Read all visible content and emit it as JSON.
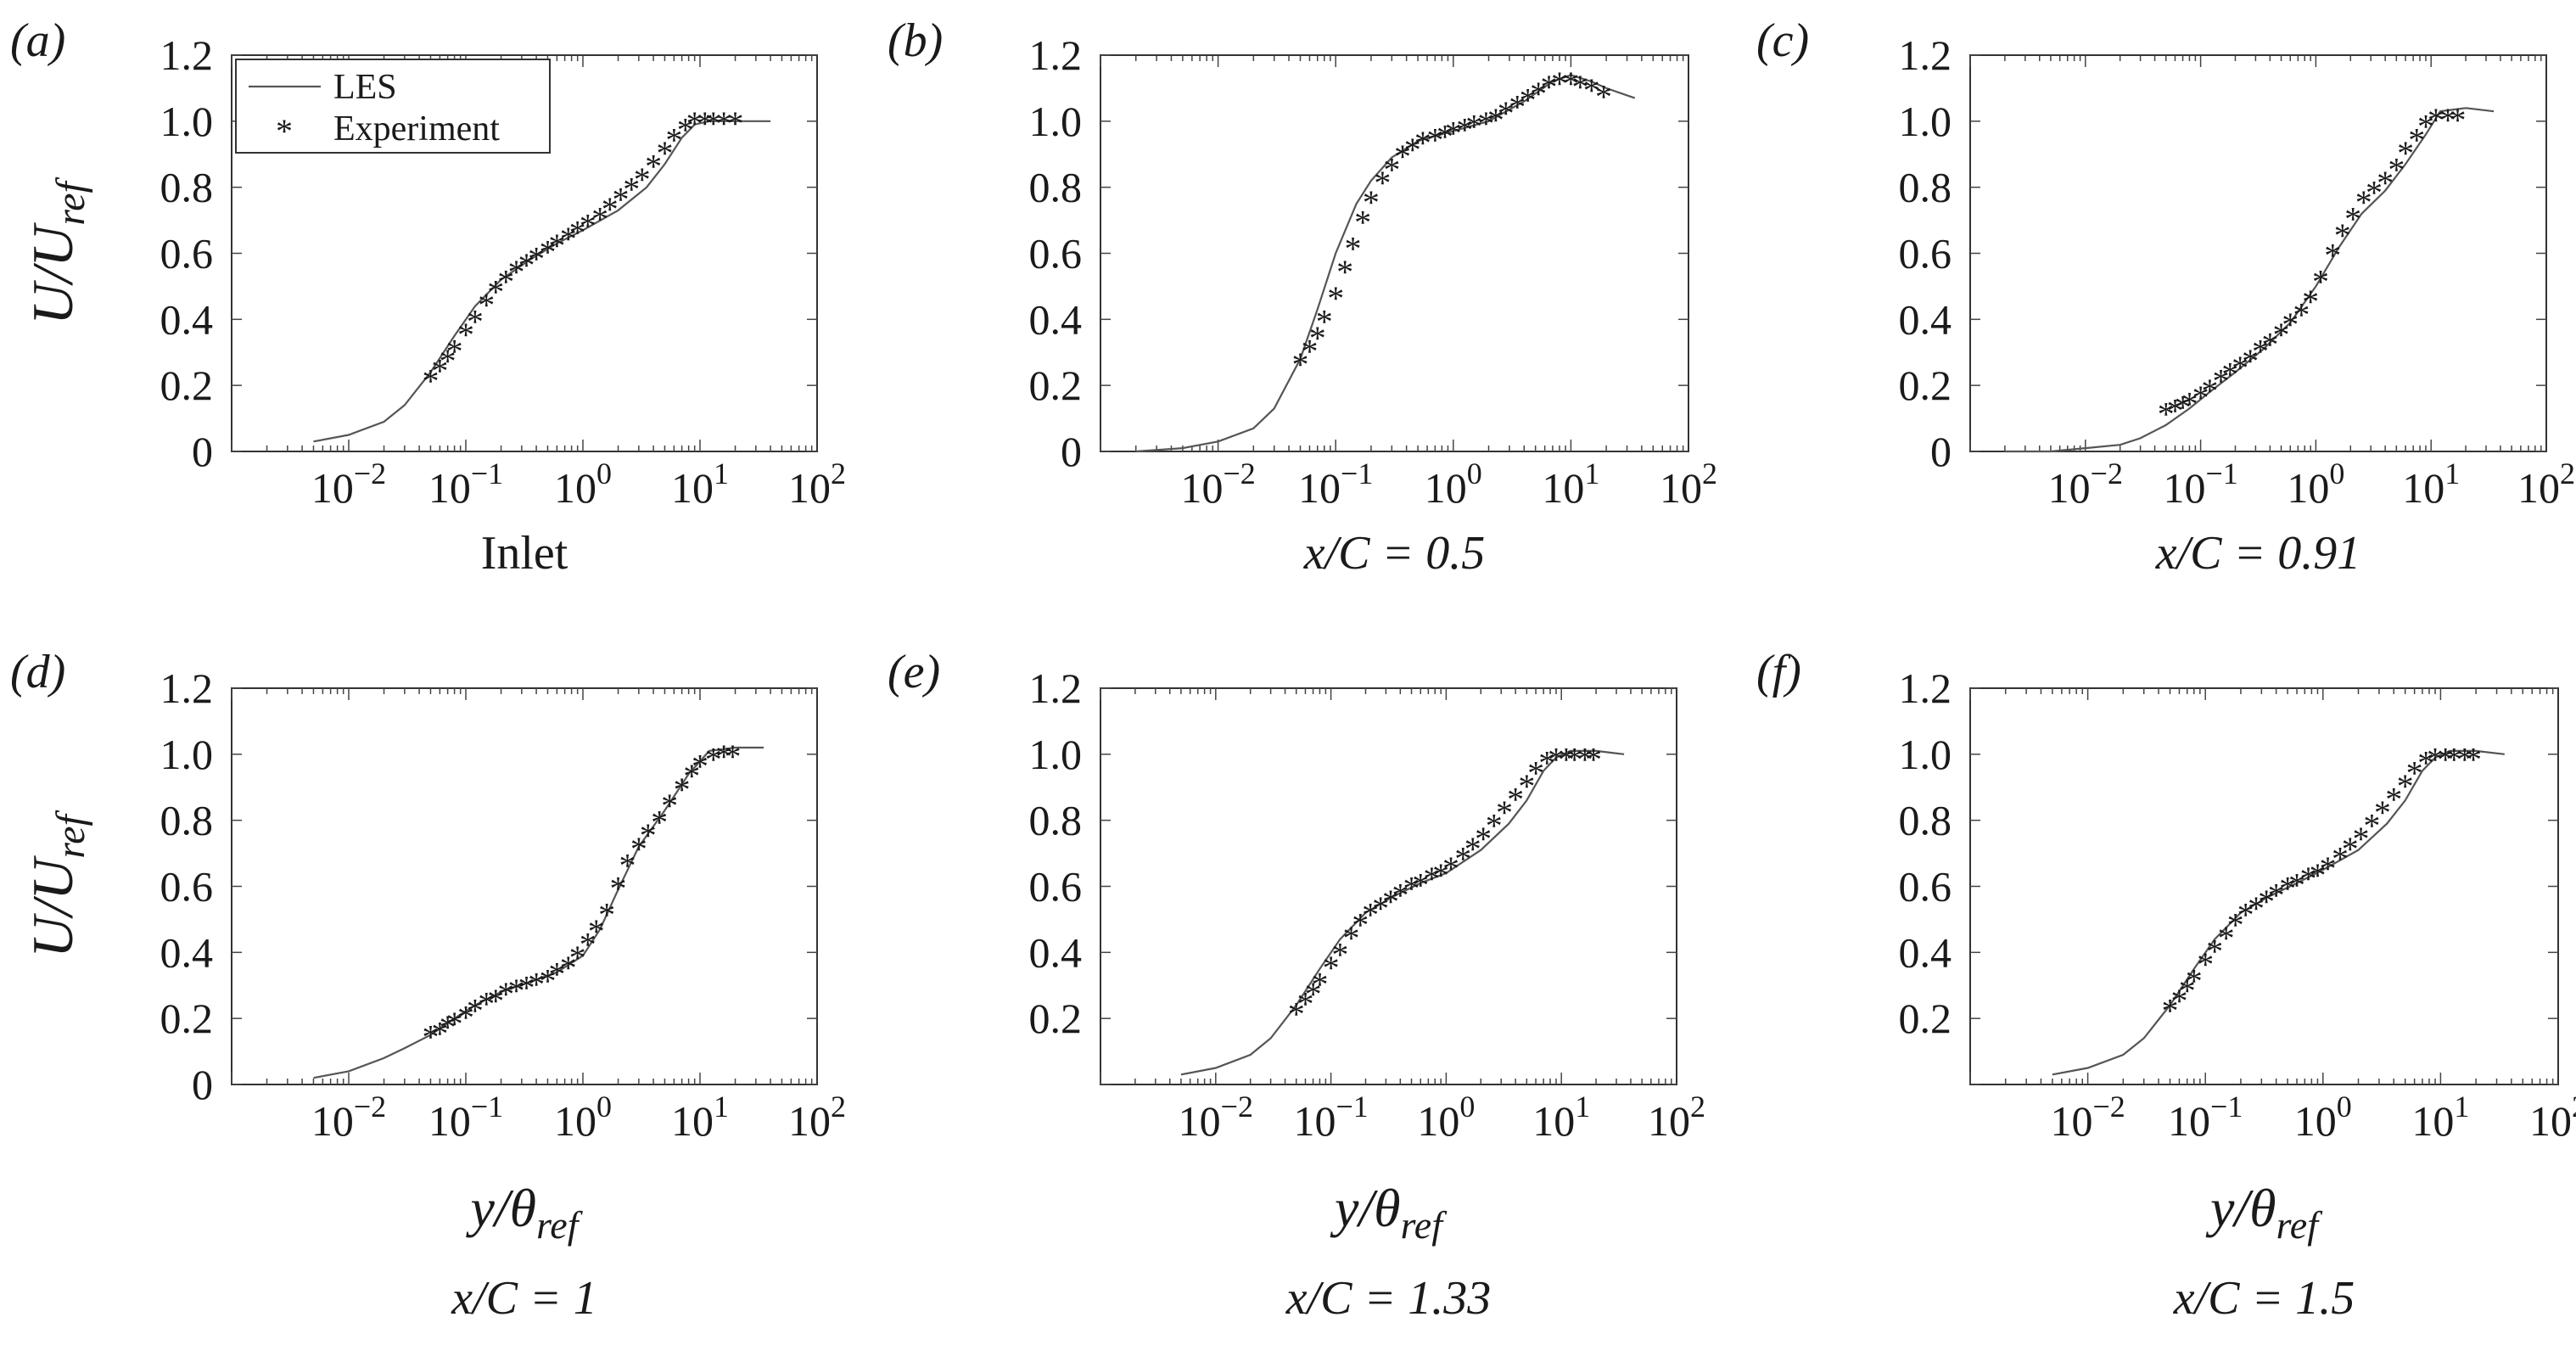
{
  "legend": {
    "les": "LES",
    "experiment": "Experiment",
    "marker": "*"
  },
  "axes_common": {
    "xscale": "log",
    "xlim": [
      0.001,
      100
    ],
    "ylim": [
      0,
      1.2
    ],
    "xticks": [
      {
        "base": "10",
        "exp": "−2"
      },
      {
        "base": "10",
        "exp": "−1"
      },
      {
        "base": "10",
        "exp": "0"
      },
      {
        "base": "10",
        "exp": "1"
      },
      {
        "base": "10",
        "exp": "2"
      }
    ],
    "ylabel": "U/U_ref",
    "xlabel": "y/θ_ref"
  },
  "chart_data": [
    {
      "type": "line+scatter",
      "panel": "(a)",
      "caption": "Inlet",
      "yticks": [
        "0",
        "0.2",
        "0.4",
        "0.6",
        "0.8",
        "1.0",
        "1.2"
      ],
      "show_ylabel": true,
      "show_xlabel": false,
      "show_legend": true,
      "series": [
        {
          "name": "LES",
          "style": "line",
          "x": [
            0.005,
            0.01,
            0.02,
            0.03,
            0.05,
            0.08,
            0.12,
            0.2,
            0.35,
            0.6,
            1,
            2,
            3.5,
            5,
            7,
            9,
            12,
            20,
            40
          ],
          "y": [
            0.03,
            0.05,
            0.09,
            0.14,
            0.24,
            0.35,
            0.44,
            0.52,
            0.58,
            0.63,
            0.67,
            0.73,
            0.8,
            0.87,
            0.95,
            0.99,
            1.0,
            1.0,
            1.0
          ]
        },
        {
          "name": "Experiment",
          "style": "markers",
          "x": [
            0.05,
            0.06,
            0.07,
            0.08,
            0.1,
            0.12,
            0.15,
            0.18,
            0.22,
            0.27,
            0.33,
            0.4,
            0.5,
            0.6,
            0.75,
            0.9,
            1.1,
            1.4,
            1.7,
            2.1,
            2.6,
            3.2,
            4,
            5,
            6,
            7.5,
            9,
            11,
            13,
            16,
            20
          ],
          "y": [
            0.22,
            0.25,
            0.28,
            0.31,
            0.36,
            0.4,
            0.45,
            0.49,
            0.52,
            0.55,
            0.57,
            0.59,
            0.61,
            0.63,
            0.65,
            0.67,
            0.69,
            0.71,
            0.74,
            0.77,
            0.8,
            0.83,
            0.87,
            0.91,
            0.95,
            0.98,
            1.0,
            1.0,
            1.0,
            1.0,
            1.0
          ]
        }
      ]
    },
    {
      "type": "line+scatter",
      "panel": "(b)",
      "caption": "x/C = 0.5",
      "yticks": [
        "0",
        "0.2",
        "0.4",
        "0.6",
        "0.8",
        "1.0",
        "1.2"
      ],
      "show_ylabel": false,
      "show_xlabel": false,
      "show_legend": false,
      "series": [
        {
          "name": "LES",
          "style": "line",
          "x": [
            0.002,
            0.005,
            0.01,
            0.02,
            0.03,
            0.05,
            0.07,
            0.1,
            0.15,
            0.2,
            0.3,
            0.5,
            1,
            2,
            4,
            7,
            10,
            15,
            20,
            35
          ],
          "y": [
            0.0,
            0.01,
            0.03,
            0.07,
            0.13,
            0.28,
            0.43,
            0.6,
            0.75,
            0.82,
            0.89,
            0.94,
            0.97,
            1.0,
            1.06,
            1.12,
            1.14,
            1.12,
            1.1,
            1.07
          ]
        },
        {
          "name": "Experiment",
          "style": "markers",
          "x": [
            0.05,
            0.06,
            0.07,
            0.08,
            0.1,
            0.12,
            0.14,
            0.17,
            0.2,
            0.25,
            0.3,
            0.37,
            0.45,
            0.55,
            0.7,
            0.85,
            1,
            1.25,
            1.5,
            1.9,
            2.3,
            2.8,
            3.5,
            4.3,
            5.3,
            6.5,
            8,
            10,
            12,
            15,
            19
          ],
          "y": [
            0.27,
            0.31,
            0.35,
            0.4,
            0.47,
            0.55,
            0.62,
            0.7,
            0.76,
            0.82,
            0.86,
            0.9,
            0.92,
            0.94,
            0.95,
            0.96,
            0.97,
            0.98,
            0.99,
            1.0,
            1.01,
            1.03,
            1.05,
            1.07,
            1.09,
            1.11,
            1.12,
            1.12,
            1.11,
            1.1,
            1.08
          ]
        }
      ]
    },
    {
      "type": "line+scatter",
      "panel": "(c)",
      "caption": "x/C = 0.91",
      "yticks": [
        "0",
        "0.2",
        "0.4",
        "0.6",
        "0.8",
        "1.0",
        "1.2"
      ],
      "show_ylabel": false,
      "show_xlabel": false,
      "show_legend": false,
      "series": [
        {
          "name": "LES",
          "style": "line",
          "x": [
            0.002,
            0.005,
            0.01,
            0.02,
            0.03,
            0.05,
            0.08,
            0.12,
            0.2,
            0.35,
            0.6,
            1,
            1.6,
            2.5,
            4,
            6,
            9,
            12,
            20,
            35
          ],
          "y": [
            0.0,
            0.0,
            0.01,
            0.02,
            0.04,
            0.08,
            0.13,
            0.18,
            0.24,
            0.31,
            0.39,
            0.5,
            0.62,
            0.72,
            0.79,
            0.87,
            0.96,
            1.03,
            1.04,
            1.03
          ]
        },
        {
          "name": "Experiment",
          "style": "markers",
          "x": [
            0.05,
            0.06,
            0.07,
            0.08,
            0.1,
            0.12,
            0.15,
            0.18,
            0.22,
            0.27,
            0.33,
            0.4,
            0.5,
            0.6,
            0.75,
            0.9,
            1.1,
            1.4,
            1.7,
            2.1,
            2.6,
            3.2,
            4,
            5,
            6,
            7.5,
            9,
            11,
            14,
            17
          ],
          "y": [
            0.12,
            0.13,
            0.14,
            0.15,
            0.17,
            0.19,
            0.22,
            0.24,
            0.26,
            0.28,
            0.31,
            0.33,
            0.36,
            0.39,
            0.42,
            0.46,
            0.52,
            0.6,
            0.66,
            0.71,
            0.76,
            0.79,
            0.82,
            0.86,
            0.91,
            0.95,
            0.99,
            1.01,
            1.01,
            1.01
          ]
        }
      ]
    },
    {
      "type": "line+scatter",
      "panel": "(d)",
      "caption": "x/C = 1",
      "yticks": [
        "0",
        "0.2",
        "0.4",
        "0.6",
        "0.8",
        "1.0",
        "1.2"
      ],
      "show_ylabel": true,
      "show_xlabel": true,
      "show_legend": false,
      "series": [
        {
          "name": "LES",
          "style": "line",
          "x": [
            0.005,
            0.01,
            0.02,
            0.03,
            0.05,
            0.08,
            0.12,
            0.2,
            0.35,
            0.6,
            1,
            1.4,
            2,
            3,
            5,
            8,
            12,
            20,
            35
          ],
          "y": [
            0.02,
            0.04,
            0.08,
            0.11,
            0.15,
            0.2,
            0.24,
            0.28,
            0.31,
            0.34,
            0.39,
            0.47,
            0.59,
            0.72,
            0.83,
            0.94,
            1.01,
            1.02,
            1.02
          ]
        },
        {
          "name": "Experiment",
          "style": "markers",
          "x": [
            0.05,
            0.06,
            0.07,
            0.08,
            0.1,
            0.12,
            0.15,
            0.18,
            0.22,
            0.27,
            0.33,
            0.4,
            0.5,
            0.6,
            0.75,
            0.9,
            1.1,
            1.3,
            1.6,
            2,
            2.4,
            3,
            3.6,
            4.5,
            5.5,
            7,
            8.5,
            10,
            13,
            16,
            19
          ],
          "y": [
            0.15,
            0.16,
            0.18,
            0.19,
            0.21,
            0.23,
            0.25,
            0.26,
            0.28,
            0.29,
            0.3,
            0.31,
            0.32,
            0.34,
            0.36,
            0.39,
            0.43,
            0.47,
            0.52,
            0.6,
            0.67,
            0.72,
            0.76,
            0.8,
            0.85,
            0.9,
            0.94,
            0.97,
            0.99,
            1.0,
            1.0
          ]
        }
      ]
    },
    {
      "type": "line+scatter",
      "panel": "(e)",
      "caption": "x/C = 1.33",
      "yticks": [
        "",
        "0.2",
        "0.4",
        "0.6",
        "0.8",
        "1.0",
        "1.2"
      ],
      "show_ylabel": false,
      "show_xlabel": true,
      "show_legend": false,
      "series": [
        {
          "name": "LES",
          "style": "line",
          "x": [
            0.005,
            0.01,
            0.02,
            0.03,
            0.05,
            0.08,
            0.12,
            0.2,
            0.35,
            0.6,
            1,
            2,
            3.5,
            5,
            7,
            9,
            12,
            20,
            35
          ],
          "y": [
            0.03,
            0.05,
            0.09,
            0.14,
            0.24,
            0.35,
            0.44,
            0.52,
            0.57,
            0.61,
            0.64,
            0.71,
            0.79,
            0.86,
            0.95,
            0.99,
            1.01,
            1.01,
            1.0
          ]
        },
        {
          "name": "Experiment",
          "style": "markers",
          "x": [
            0.05,
            0.06,
            0.07,
            0.08,
            0.1,
            0.12,
            0.15,
            0.18,
            0.22,
            0.27,
            0.33,
            0.4,
            0.5,
            0.6,
            0.75,
            0.9,
            1.1,
            1.4,
            1.7,
            2.1,
            2.6,
            3.2,
            4,
            5,
            6,
            7.5,
            9,
            11,
            13,
            16,
            19
          ],
          "y": [
            0.22,
            0.25,
            0.28,
            0.31,
            0.36,
            0.4,
            0.45,
            0.49,
            0.52,
            0.54,
            0.56,
            0.58,
            0.6,
            0.61,
            0.63,
            0.64,
            0.66,
            0.69,
            0.72,
            0.75,
            0.79,
            0.83,
            0.87,
            0.91,
            0.95,
            0.98,
            0.99,
            0.99,
            0.99,
            0.99,
            0.99
          ]
        }
      ]
    },
    {
      "type": "line+scatter",
      "panel": "(f)",
      "caption": "x/C = 1.5",
      "yticks": [
        "",
        "0.2",
        "0.4",
        "0.6",
        "0.8",
        "1.0",
        "1.2"
      ],
      "show_ylabel": false,
      "show_xlabel": true,
      "show_legend": false,
      "series": [
        {
          "name": "LES",
          "style": "line",
          "x": [
            0.005,
            0.01,
            0.02,
            0.03,
            0.05,
            0.08,
            0.12,
            0.2,
            0.35,
            0.6,
            1,
            2,
            3.5,
            5,
            7,
            9,
            12,
            20,
            35
          ],
          "y": [
            0.03,
            0.05,
            0.09,
            0.14,
            0.24,
            0.35,
            0.44,
            0.52,
            0.57,
            0.61,
            0.65,
            0.71,
            0.79,
            0.86,
            0.95,
            0.99,
            1.01,
            1.01,
            1.0
          ]
        },
        {
          "name": "Experiment",
          "style": "markers",
          "x": [
            0.05,
            0.06,
            0.07,
            0.08,
            0.1,
            0.12,
            0.15,
            0.18,
            0.22,
            0.27,
            0.33,
            0.4,
            0.5,
            0.6,
            0.75,
            0.9,
            1.1,
            1.4,
            1.7,
            2.1,
            2.6,
            3.2,
            4,
            5,
            6,
            7.5,
            9,
            11,
            13,
            16,
            19
          ],
          "y": [
            0.23,
            0.26,
            0.29,
            0.32,
            0.37,
            0.41,
            0.45,
            0.49,
            0.52,
            0.54,
            0.56,
            0.58,
            0.6,
            0.61,
            0.63,
            0.64,
            0.66,
            0.69,
            0.72,
            0.75,
            0.79,
            0.83,
            0.87,
            0.91,
            0.95,
            0.98,
            0.99,
            0.99,
            0.99,
            0.99,
            0.99
          ]
        }
      ]
    }
  ]
}
